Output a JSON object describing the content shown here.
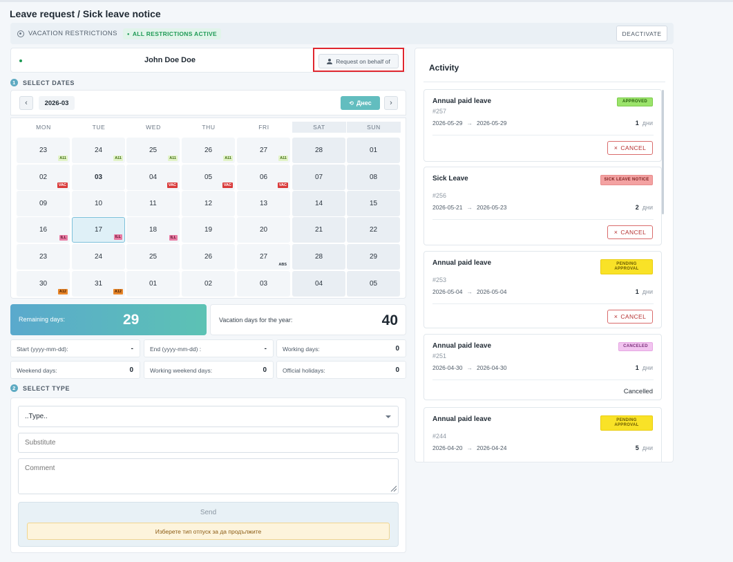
{
  "page": {
    "title": "Leave request / Sick leave notice"
  },
  "restrictions": {
    "label": "VACATION RESTRICTIONS",
    "badge": "ALL RESTRICTIONS ACTIVE",
    "deactivate_label": "DEACTIVATE"
  },
  "user": {
    "name": "John Doe Doe",
    "behalf_label": "Request on behalf of"
  },
  "steps": {
    "select_dates": {
      "num": "1",
      "label": "SELECT DATES"
    },
    "select_type": {
      "num": "2",
      "label": "SELECT TYPE"
    }
  },
  "calendar": {
    "month": "2026-03",
    "today_label": "Днес",
    "prev_icon": "‹",
    "next_icon": "›",
    "weekdays": [
      "MON",
      "TUE",
      "WED",
      "THU",
      "FRI",
      "SAT",
      "SUN"
    ],
    "weeks": [
      [
        {
          "d": "23",
          "tag": "A11"
        },
        {
          "d": "24",
          "tag": "A11"
        },
        {
          "d": "25",
          "tag": "A11"
        },
        {
          "d": "26",
          "tag": "A11"
        },
        {
          "d": "27",
          "tag": "A11"
        },
        {
          "d": "28"
        },
        {
          "d": "01"
        }
      ],
      [
        {
          "d": "02",
          "tag": "VAC"
        },
        {
          "d": "03",
          "today": true
        },
        {
          "d": "04",
          "tag": "VAC"
        },
        {
          "d": "05",
          "tag": "VAC"
        },
        {
          "d": "06",
          "tag": "VAC"
        },
        {
          "d": "07"
        },
        {
          "d": "08"
        }
      ],
      [
        {
          "d": "09"
        },
        {
          "d": "10"
        },
        {
          "d": "11"
        },
        {
          "d": "12"
        },
        {
          "d": "13"
        },
        {
          "d": "14"
        },
        {
          "d": "15"
        }
      ],
      [
        {
          "d": "16",
          "tag": "ILL"
        },
        {
          "d": "17",
          "tag": "ILL",
          "selected": true
        },
        {
          "d": "18",
          "tag": "ILL"
        },
        {
          "d": "19"
        },
        {
          "d": "20"
        },
        {
          "d": "21"
        },
        {
          "d": "22"
        }
      ],
      [
        {
          "d": "23"
        },
        {
          "d": "24"
        },
        {
          "d": "25"
        },
        {
          "d": "26"
        },
        {
          "d": "27",
          "tag": "ABS"
        },
        {
          "d": "28"
        },
        {
          "d": "29"
        }
      ],
      [
        {
          "d": "30",
          "tag": "A12"
        },
        {
          "d": "31",
          "tag": "A12"
        },
        {
          "d": "01"
        },
        {
          "d": "02"
        },
        {
          "d": "03"
        },
        {
          "d": "04"
        },
        {
          "d": "05"
        }
      ]
    ]
  },
  "stats": {
    "remaining_label": "Remaining days:",
    "remaining_value": "29",
    "year_label": "Vacation days for the year:",
    "year_value": "40",
    "boxes": [
      {
        "label": "Start (yyyy-mm-dd):",
        "value": "-"
      },
      {
        "label": "End (yyyy-mm-dd) :",
        "value": "-"
      },
      {
        "label": "Working days:",
        "value": "0"
      },
      {
        "label": "Weekend days:",
        "value": "0"
      },
      {
        "label": "Working weekend days:",
        "value": "0"
      },
      {
        "label": "Official holidays:",
        "value": "0"
      }
    ]
  },
  "form": {
    "type_value": "..Type..",
    "substitute_placeholder": "Substitute",
    "comment_placeholder": "Comment",
    "send_label": "Send",
    "warning": "Изберете тип отпуск за да продължите"
  },
  "activity": {
    "title": "Activity",
    "items": [
      {
        "title": "Annual paid leave",
        "id": "#257",
        "from": "2026-05-29",
        "to": "2026-05-29",
        "days": "1",
        "unit": "дни",
        "status": "APPROVED",
        "action": "CANCEL"
      },
      {
        "title": "Sick Leave",
        "id": "#256",
        "from": "2026-05-21",
        "to": "2026-05-23",
        "days": "2",
        "unit": "дни",
        "status": "SICK LEAVE NOTICE",
        "action": "CANCEL"
      },
      {
        "title": "Annual paid leave",
        "id": "#253",
        "from": "2026-05-04",
        "to": "2026-05-04",
        "days": "1",
        "unit": "дни",
        "status": "PENDING APPROVAL",
        "action": "CANCEL"
      },
      {
        "title": "Annual paid leave",
        "id": "#251",
        "from": "2026-04-30",
        "to": "2026-04-30",
        "days": "1",
        "unit": "дни",
        "status": "CANCELED",
        "action_text": "Cancelled"
      },
      {
        "title": "Annual paid leave",
        "id": "#244",
        "from": "2026-04-20",
        "to": "2026-04-24",
        "days": "5",
        "unit": "дни",
        "status": "PENDING APPROVAL"
      }
    ]
  }
}
